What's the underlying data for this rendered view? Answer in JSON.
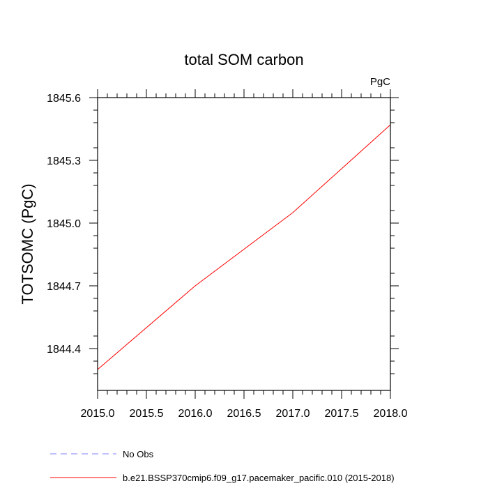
{
  "chart_data": {
    "type": "line",
    "title": "total SOM carbon",
    "units_label": "PgC",
    "ylabel": "TOTSOMC  (PgC)",
    "xlabel": "",
    "xlim": [
      2015.0,
      2018.0
    ],
    "ylim": [
      1844.2,
      1845.6
    ],
    "x_ticks": [
      2015.0,
      2015.5,
      2016.0,
      2016.5,
      2017.0,
      2017.5,
      2018.0
    ],
    "x_tick_labels": [
      "2015.0",
      "2015.5",
      "2016.0",
      "2016.5",
      "2017.0",
      "2017.5",
      "2018.0"
    ],
    "y_ticks": [
      1844.4,
      1844.7,
      1845.0,
      1845.3,
      1845.6
    ],
    "y_tick_labels": [
      "1844.4",
      "1844.7",
      "1845.0",
      "1845.3",
      "1845.6"
    ],
    "grid": false,
    "series": [
      {
        "name": "b.e21.BSSP370cmip6.f09_g17.pacemaker_pacific.010 (2015-2018)",
        "color": "#ff0000",
        "dash": "solid",
        "x": [
          2015.0,
          2016.0,
          2017.0,
          2018.0
        ],
        "y": [
          1844.3,
          1844.7,
          1845.05,
          1845.47
        ]
      }
    ],
    "legend": {
      "placement": "bottom-left",
      "entries": [
        {
          "label": "No Obs",
          "color": "#8080ff",
          "dash": "dashed"
        },
        {
          "label": "b.e21.BSSP370cmip6.f09_g17.pacemaker_pacific.010 (2015-2018)",
          "color": "#ff0000",
          "dash": "solid"
        }
      ]
    }
  }
}
